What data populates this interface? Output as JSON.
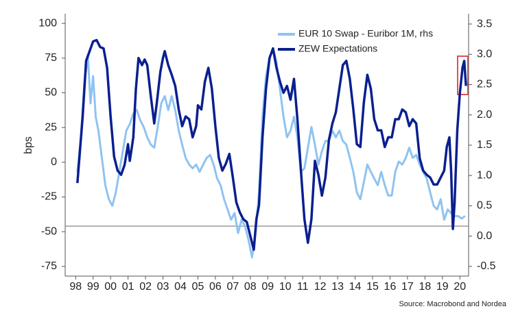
{
  "chart_data": {
    "type": "line",
    "source": "Source: Macrobond and Nordea",
    "ylabel": "bps",
    "xlim": [
      1997.9,
      2021.0
    ],
    "xticks": [
      {
        "value": 1998.5,
        "label": "98"
      },
      {
        "value": 1999.5,
        "label": "99"
      },
      {
        "value": 2000.5,
        "label": "00"
      },
      {
        "value": 2001.5,
        "label": "01"
      },
      {
        "value": 2002.5,
        "label": "02"
      },
      {
        "value": 2003.5,
        "label": "03"
      },
      {
        "value": 2004.5,
        "label": "04"
      },
      {
        "value": 2005.5,
        "label": "05"
      },
      {
        "value": 2006.5,
        "label": "06"
      },
      {
        "value": 2007.5,
        "label": "07"
      },
      {
        "value": 2008.5,
        "label": "08"
      },
      {
        "value": 2009.5,
        "label": "09"
      },
      {
        "value": 2010.5,
        "label": "10"
      },
      {
        "value": 2011.5,
        "label": "11"
      },
      {
        "value": 2012.5,
        "label": "12"
      },
      {
        "value": 2013.5,
        "label": "13"
      },
      {
        "value": 2014.5,
        "label": "14"
      },
      {
        "value": 2015.5,
        "label": "15"
      },
      {
        "value": 2016.5,
        "label": "16"
      },
      {
        "value": 2017.5,
        "label": "17"
      },
      {
        "value": 2018.5,
        "label": "18"
      },
      {
        "value": 2019.5,
        "label": "19"
      },
      {
        "value": 2020.5,
        "label": "20"
      }
    ],
    "ylim": [
      -82,
      107
    ],
    "yticks": [
      100,
      75,
      50,
      25,
      0,
      -25,
      -50,
      -75
    ],
    "y2lim": [
      -0.66,
      3.67
    ],
    "y2ticks": [
      3.5,
      {
        "value": 3,
        "label": "3.0"
      },
      2.5,
      {
        "value": 2,
        "label": "2.0"
      },
      1.5,
      {
        "value": 1,
        "label": "1.0"
      },
      0.5,
      {
        "value": 0,
        "label": "0.0"
      },
      -0.5
    ],
    "hline": -46,
    "series": [
      {
        "name": "EUR 10 Swap - Euribor 1M, rhs",
        "color": "#8fc3f0",
        "axis": "y2",
        "x": [
          1998.6,
          1998.8,
          1999.0,
          1999.2,
          1999.35,
          1999.5,
          1999.65,
          1999.8,
          2000.0,
          2000.2,
          2000.4,
          2000.6,
          2000.8,
          2001.0,
          2001.2,
          2001.4,
          2001.6,
          2001.8,
          2002.0,
          2002.2,
          2002.4,
          2002.6,
          2002.8,
          2003.0,
          2003.2,
          2003.4,
          2003.6,
          2003.8,
          2004.0,
          2004.2,
          2004.4,
          2004.6,
          2004.8,
          2005.0,
          2005.2,
          2005.4,
          2005.6,
          2005.8,
          2006.0,
          2006.2,
          2006.4,
          2006.6,
          2006.8,
          2007.0,
          2007.2,
          2007.4,
          2007.6,
          2007.8,
          2008.0,
          2008.2,
          2008.4,
          2008.6,
          2008.8,
          2009.0,
          2009.2,
          2009.4,
          2009.6,
          2009.8,
          2010.0,
          2010.2,
          2010.4,
          2010.6,
          2010.8,
          2011.0,
          2011.2,
          2011.4,
          2011.6,
          2011.8,
          2012.0,
          2012.2,
          2012.4,
          2012.6,
          2012.8,
          2013.0,
          2013.2,
          2013.4,
          2013.6,
          2013.8,
          2014.0,
          2014.2,
          2014.4,
          2014.6,
          2014.8,
          2015.0,
          2015.2,
          2015.4,
          2015.6,
          2015.8,
          2016.0,
          2016.2,
          2016.4,
          2016.6,
          2016.8,
          2017.0,
          2017.2,
          2017.4,
          2017.6,
          2017.8,
          2018.0,
          2018.2,
          2018.4,
          2018.6,
          2018.8,
          2019.0,
          2019.2,
          2019.4,
          2019.6,
          2019.8,
          2020.0,
          2020.2,
          2020.4,
          2020.6,
          2020.8
        ],
        "values": [
          1.06,
          1.63,
          2.53,
          2.98,
          2.19,
          2.64,
          1.97,
          1.74,
          1.29,
          0.84,
          0.61,
          0.5,
          0.72,
          1.06,
          1.4,
          1.74,
          1.85,
          2.02,
          2.08,
          1.91,
          1.8,
          1.63,
          1.51,
          1.46,
          1.8,
          2.19,
          2.31,
          2.08,
          2.31,
          2.08,
          1.74,
          1.51,
          1.29,
          1.18,
          1.12,
          1.18,
          1.06,
          1.18,
          1.29,
          1.34,
          1.18,
          0.95,
          0.84,
          0.61,
          0.44,
          0.27,
          0.38,
          0.05,
          0.27,
          0.16,
          -0.07,
          -0.35,
          0.05,
          0.72,
          1.97,
          2.64,
          2.93,
          3.1,
          2.87,
          2.42,
          1.97,
          1.63,
          1.74,
          1.97,
          1.63,
          1.06,
          1.12,
          1.46,
          1.8,
          1.51,
          1.18,
          1.4,
          1.57,
          1.57,
          1.74,
          1.63,
          1.74,
          1.57,
          1.51,
          1.29,
          1.06,
          0.72,
          0.61,
          0.89,
          1.18,
          1.06,
          0.95,
          0.84,
          1.06,
          0.84,
          0.67,
          0.67,
          1.06,
          1.23,
          1.18,
          1.29,
          1.46,
          1.29,
          1.34,
          1.18,
          1.06,
          0.95,
          0.72,
          0.5,
          0.44,
          0.61,
          0.27,
          0.44,
          0.38,
          0.33,
          0.33,
          0.29,
          0.33
        ]
      },
      {
        "name": "ZEW Expectations",
        "color": "#0a1f8f",
        "x": [
          1998.6,
          1998.9,
          1999.1,
          1999.3,
          1999.5,
          1999.7,
          1999.9,
          2000.1,
          2000.3,
          2000.5,
          2000.7,
          2000.9,
          2001.1,
          2001.3,
          2001.5,
          2001.6,
          2001.8,
          2001.95,
          2002.1,
          2002.3,
          2002.45,
          2002.6,
          2002.8,
          2003.0,
          2003.15,
          2003.35,
          2003.5,
          2003.6,
          2003.8,
          2004.0,
          2004.2,
          2004.4,
          2004.6,
          2004.8,
          2005.0,
          2005.2,
          2005.4,
          2005.5,
          2005.7,
          2005.9,
          2006.1,
          2006.3,
          2006.5,
          2006.7,
          2006.9,
          2007.1,
          2007.3,
          2007.5,
          2007.7,
          2007.9,
          2008.1,
          2008.3,
          2008.5,
          2008.7,
          2008.85,
          2009.0,
          2009.2,
          2009.4,
          2009.6,
          2009.8,
          2010.0,
          2010.2,
          2010.4,
          2010.6,
          2010.8,
          2011.0,
          2011.2,
          2011.4,
          2011.6,
          2011.8,
          2012.0,
          2012.2,
          2012.4,
          2012.6,
          2012.8,
          2013.0,
          2013.2,
          2013.4,
          2013.6,
          2013.8,
          2014.0,
          2014.2,
          2014.4,
          2014.6,
          2014.8,
          2015.0,
          2015.2,
          2015.4,
          2015.6,
          2015.8,
          2016.0,
          2016.2,
          2016.4,
          2016.6,
          2016.8,
          2017.0,
          2017.2,
          2017.4,
          2017.6,
          2017.8,
          2018.0,
          2018.2,
          2018.4,
          2018.6,
          2018.8,
          2019.0,
          2019.2,
          2019.4,
          2019.6,
          2019.75,
          2019.9,
          2020.0,
          2020.1,
          2020.2,
          2020.35,
          2020.5,
          2020.65,
          2020.75,
          2020.85
        ],
        "values": [
          -15,
          33,
          73,
          80,
          87,
          88,
          83,
          82,
          68,
          33,
          4,
          -6,
          -9,
          -2,
          13,
          1,
          18,
          53,
          75,
          70,
          74,
          70,
          48,
          28,
          43,
          65,
          75,
          80,
          70,
          63,
          55,
          38,
          26,
          33,
          31,
          18,
          26,
          41,
          38,
          58,
          68,
          53,
          26,
          3,
          -6,
          -1,
          6,
          -11,
          -29,
          -36,
          -41,
          -43,
          -53,
          -63,
          -41,
          -31,
          18,
          53,
          75,
          82,
          68,
          58,
          50,
          55,
          45,
          60,
          31,
          -6,
          -41,
          -58,
          -41,
          1,
          -9,
          -24,
          -11,
          16,
          28,
          36,
          53,
          70,
          73,
          60,
          38,
          13,
          11,
          43,
          63,
          53,
          31,
          23,
          23,
          11,
          18,
          18,
          31,
          31,
          38,
          36,
          26,
          31,
          28,
          3,
          -6,
          -9,
          -11,
          -16,
          -16,
          -11,
          -6,
          11,
          18,
          -6,
          -48,
          -29,
          23,
          50,
          68,
          73,
          55
        ]
      }
    ]
  }
}
